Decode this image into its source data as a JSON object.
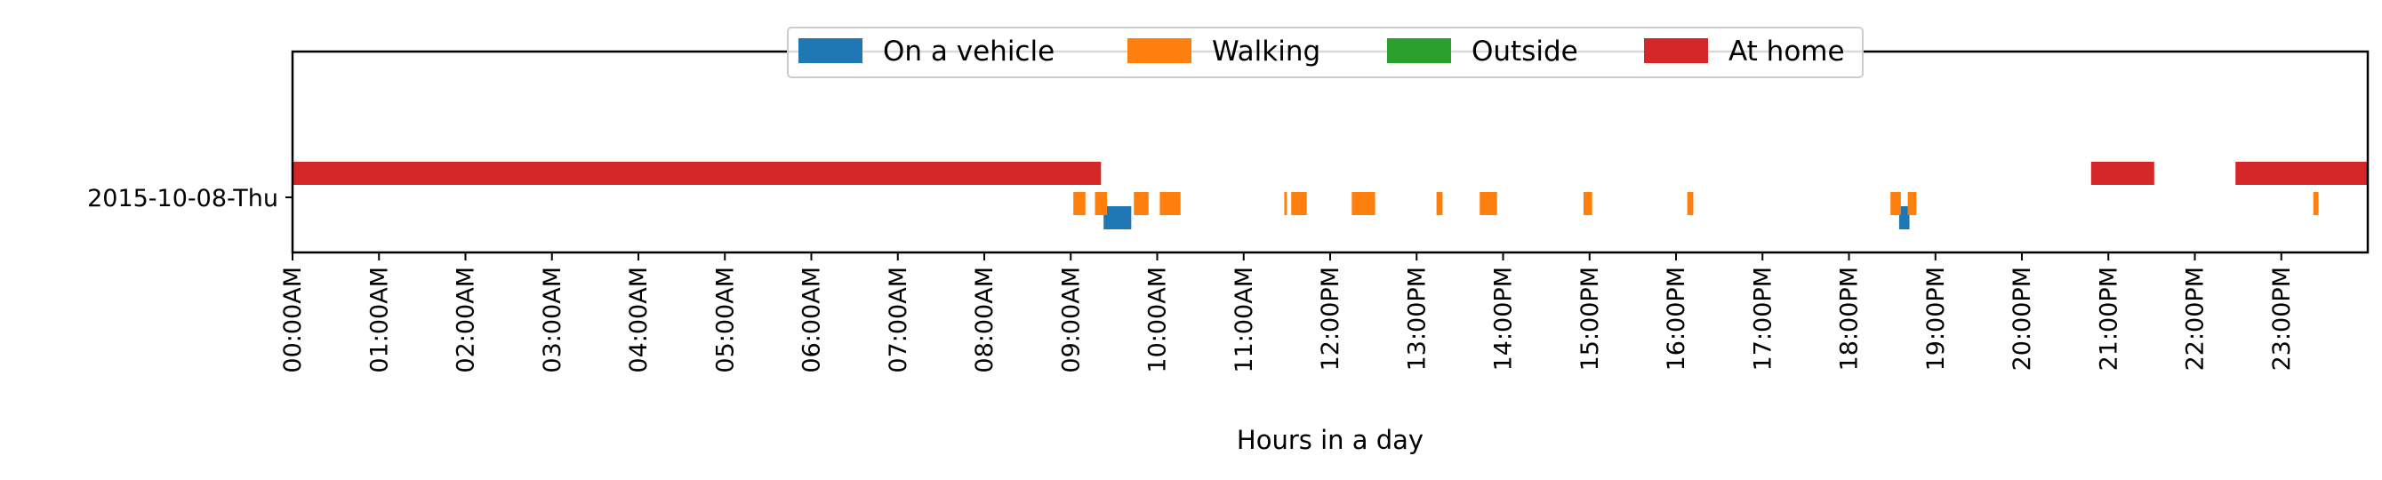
{
  "chart_data": {
    "type": "timeline",
    "xlabel": "Hours in a day",
    "xlim": [
      0,
      24
    ],
    "rows": [
      "2015-10-08-Thu"
    ],
    "ticks": [
      "00:00AM",
      "01:00AM",
      "02:00AM",
      "03:00AM",
      "04:00AM",
      "05:00AM",
      "06:00AM",
      "07:00AM",
      "08:00AM",
      "09:00AM",
      "10:00AM",
      "11:00AM",
      "12:00PM",
      "13:00PM",
      "14:00PM",
      "15:00PM",
      "16:00PM",
      "17:00PM",
      "18:00PM",
      "19:00PM",
      "20:00PM",
      "21:00PM",
      "22:00PM",
      "23:00PM"
    ],
    "legend_position": "top-center",
    "series": [
      {
        "name": "On a vehicle",
        "color": "#1f77b4",
        "lane": 2,
        "intervals": [
          [
            9.38,
            9.7
          ],
          [
            18.58,
            18.7
          ]
        ]
      },
      {
        "name": "Walking",
        "color": "#ff7f0e",
        "lane": 1,
        "intervals": [
          [
            9.03,
            9.17
          ],
          [
            9.28,
            9.42
          ],
          [
            9.73,
            9.9
          ],
          [
            10.03,
            10.27
          ],
          [
            11.47,
            11.5
          ],
          [
            11.55,
            11.73
          ],
          [
            12.25,
            12.52
          ],
          [
            13.23,
            13.3
          ],
          [
            13.73,
            13.93
          ],
          [
            14.93,
            15.03
          ],
          [
            16.13,
            16.2
          ],
          [
            18.48,
            18.6
          ],
          [
            18.68,
            18.78
          ],
          [
            23.37,
            23.43
          ]
        ]
      },
      {
        "name": "Outside",
        "color": "#2ca02c",
        "lane": 0,
        "intervals": []
      },
      {
        "name": "At home",
        "color": "#d62728",
        "lane": 0,
        "intervals": [
          [
            0,
            9.35
          ],
          [
            20.8,
            21.53
          ],
          [
            22.47,
            24
          ]
        ]
      }
    ]
  }
}
